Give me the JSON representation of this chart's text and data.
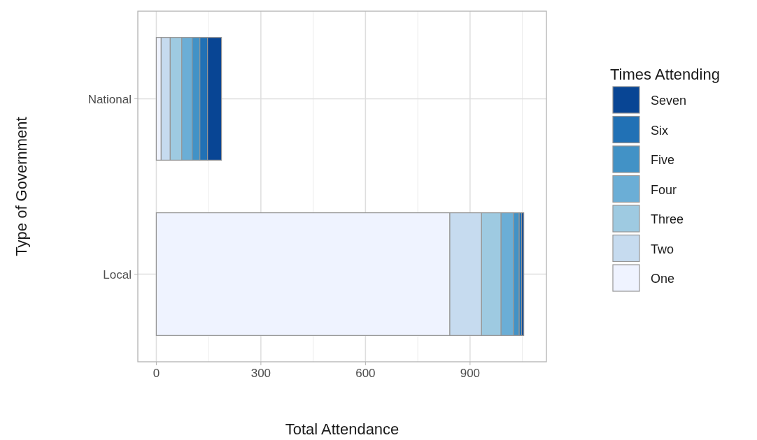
{
  "chart_data": {
    "type": "bar",
    "orientation": "horizontal",
    "stacked": true,
    "xlabel": "Total Attendance",
    "ylabel": "Type of Government",
    "legend_title": "Times Attending",
    "legend": "right",
    "grid": true,
    "categories": [
      "National",
      "Local"
    ],
    "xlim": [
      -53,
      1119
    ],
    "xticks": [
      0,
      300,
      600,
      900
    ],
    "series": [
      {
        "name": "One",
        "color": "#eff3ff",
        "values": [
          14,
          842
        ]
      },
      {
        "name": "Two",
        "color": "#c6dbef",
        "values": [
          26,
          91
        ]
      },
      {
        "name": "Three",
        "color": "#9ecae1",
        "values": [
          33,
          56
        ]
      },
      {
        "name": "Four",
        "color": "#6baed6",
        "values": [
          30,
          36
        ]
      },
      {
        "name": "Five",
        "color": "#4292c6",
        "values": [
          22,
          16
        ]
      },
      {
        "name": "Six",
        "color": "#2171b5",
        "values": [
          22,
          7
        ]
      },
      {
        "name": "Seven",
        "color": "#084594",
        "values": [
          40,
          6
        ]
      }
    ]
  }
}
